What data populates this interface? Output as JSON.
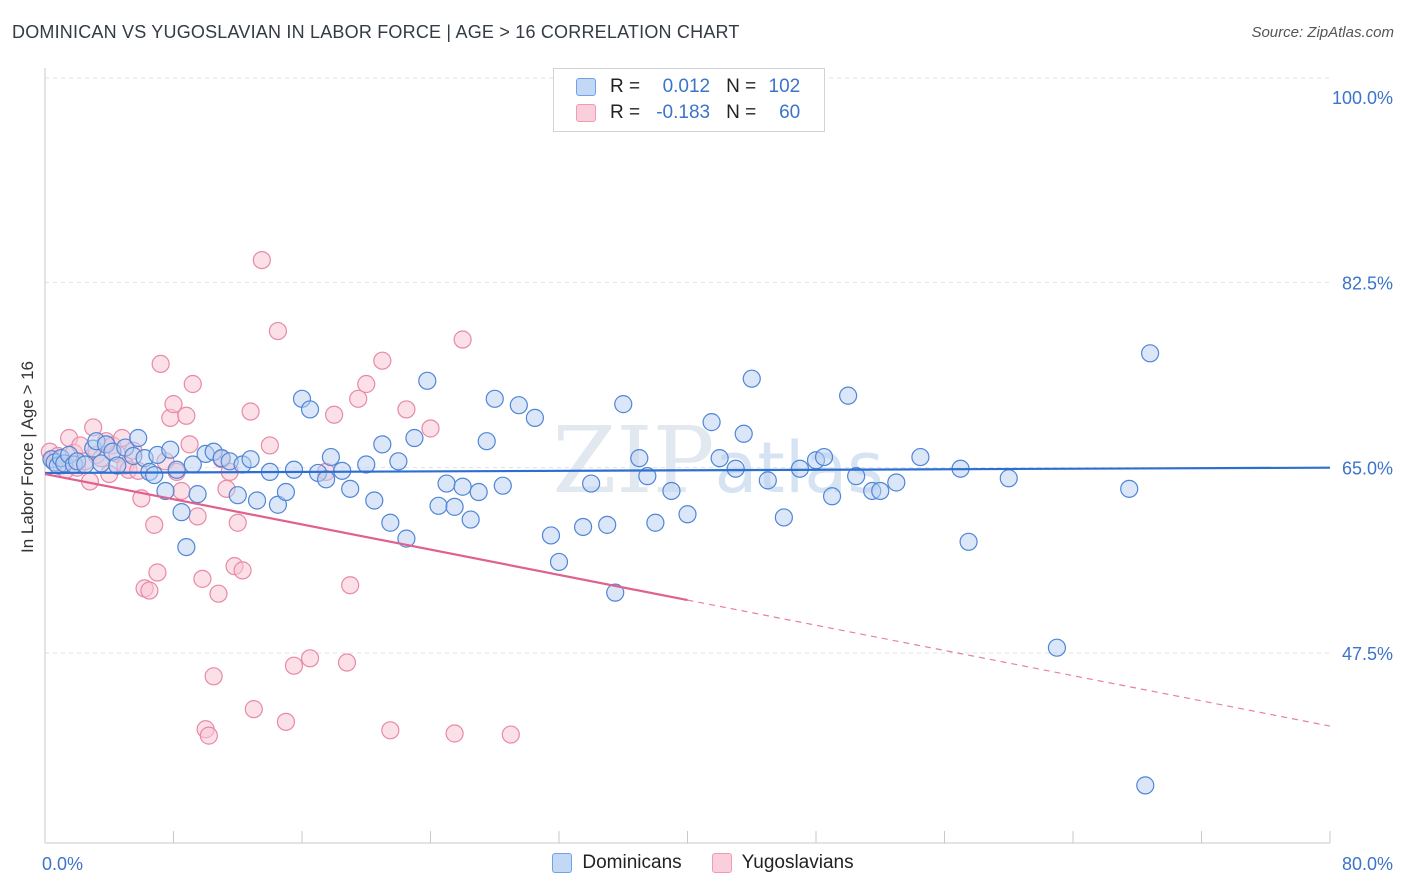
{
  "title": "DOMINICAN VS YUGOSLAVIAN IN LABOR FORCE | AGE > 16 CORRELATION CHART",
  "source": "Source: ZipAtlas.com",
  "watermark": "ZIPatlas",
  "legend": {
    "rows": [
      {
        "r_label": "R =",
        "r_value": "0.012",
        "n_label": "N =",
        "n_value": "102",
        "color": "#6fa3e8"
      },
      {
        "r_label": "R =",
        "r_value": "-0.183",
        "n_label": "N =",
        "n_value": "60",
        "color": "#f09ab5"
      }
    ]
  },
  "colors": {
    "blue_fill": "#b8d0f2",
    "blue_stroke": "#4f86d6",
    "blue_line": "#2d6fd0",
    "pink_fill": "#f8c6d5",
    "pink_stroke": "#e889a7",
    "pink_line": "#e0608e",
    "tick_label": "#3b74c9",
    "grid": "#dde1e6"
  },
  "chart_data": {
    "type": "scatter",
    "ylabel": "In Labor Force | Age > 16",
    "xlim": [
      0,
      80
    ],
    "ylim": [
      34,
      101
    ],
    "x_tick_labels": [
      {
        "value": 0,
        "label": "0.0%"
      },
      {
        "value": 80,
        "label": "80.0%"
      }
    ],
    "y_tick_labels": [
      {
        "value": 100,
        "label": "100.0%"
      },
      {
        "value": 82.5,
        "label": "82.5%"
      },
      {
        "value": 65,
        "label": "65.0%"
      },
      {
        "value": 47.5,
        "label": "47.5%"
      }
    ],
    "grid_y": [
      100,
      82.5,
      65,
      47.5
    ],
    "series": [
      {
        "name": "Dominicans",
        "trend": {
          "x0": 0,
          "y0": 64.5,
          "x1": 80,
          "y1": 65.0,
          "dashed_from": null
        },
        "points": [
          [
            0.4,
            65.8
          ],
          [
            0.6,
            65.5
          ],
          [
            0.8,
            65.2
          ],
          [
            1.0,
            65.9
          ],
          [
            1.2,
            65.4
          ],
          [
            1.5,
            66.2
          ],
          [
            1.8,
            65.3
          ],
          [
            2.0,
            65.6
          ],
          [
            2.5,
            65.3
          ],
          [
            3.0,
            66.8
          ],
          [
            3.2,
            67.5
          ],
          [
            3.5,
            65.4
          ],
          [
            3.8,
            67.2
          ],
          [
            4.2,
            66.5
          ],
          [
            4.5,
            65.2
          ],
          [
            5.0,
            66.9
          ],
          [
            5.5,
            66.1
          ],
          [
            5.8,
            67.8
          ],
          [
            6.2,
            65.9
          ],
          [
            6.5,
            64.6
          ],
          [
            6.8,
            64.3
          ],
          [
            7.0,
            66.2
          ],
          [
            7.5,
            62.8
          ],
          [
            7.8,
            66.7
          ],
          [
            8.2,
            64.8
          ],
          [
            8.5,
            60.8
          ],
          [
            8.8,
            57.5
          ],
          [
            9.2,
            65.3
          ],
          [
            9.5,
            62.5
          ],
          [
            10.0,
            66.3
          ],
          [
            10.5,
            66.5
          ],
          [
            11.0,
            65.9
          ],
          [
            11.5,
            65.6
          ],
          [
            12.0,
            62.4
          ],
          [
            12.3,
            65.3
          ],
          [
            12.8,
            65.8
          ],
          [
            13.2,
            61.9
          ],
          [
            14.0,
            64.6
          ],
          [
            14.5,
            61.5
          ],
          [
            15.0,
            62.7
          ],
          [
            15.5,
            64.8
          ],
          [
            16.0,
            71.5
          ],
          [
            16.5,
            70.5
          ],
          [
            17.0,
            64.5
          ],
          [
            17.5,
            63.9
          ],
          [
            17.8,
            66.0
          ],
          [
            18.5,
            64.7
          ],
          [
            19.0,
            63.0
          ],
          [
            20.0,
            65.3
          ],
          [
            20.5,
            61.9
          ],
          [
            21.0,
            67.2
          ],
          [
            21.5,
            59.8
          ],
          [
            22.0,
            65.6
          ],
          [
            22.5,
            58.3
          ],
          [
            23.0,
            67.8
          ],
          [
            23.8,
            73.2
          ],
          [
            24.5,
            61.4
          ],
          [
            25.0,
            63.5
          ],
          [
            25.5,
            61.3
          ],
          [
            26.0,
            63.2
          ],
          [
            26.5,
            60.1
          ],
          [
            27.0,
            62.7
          ],
          [
            27.5,
            67.5
          ],
          [
            28.0,
            71.5
          ],
          [
            28.5,
            63.3
          ],
          [
            29.5,
            70.9
          ],
          [
            30.5,
            69.7
          ],
          [
            31.5,
            58.6
          ],
          [
            32.0,
            56.1
          ],
          [
            33.5,
            59.4
          ],
          [
            34.0,
            63.5
          ],
          [
            35.0,
            59.6
          ],
          [
            35.5,
            53.2
          ],
          [
            36.0,
            71.0
          ],
          [
            37.0,
            65.9
          ],
          [
            37.5,
            64.2
          ],
          [
            38.0,
            59.8
          ],
          [
            39.0,
            62.8
          ],
          [
            40.0,
            60.6
          ],
          [
            41.5,
            69.3
          ],
          [
            42.0,
            65.9
          ],
          [
            43.0,
            64.9
          ],
          [
            43.5,
            68.2
          ],
          [
            44.0,
            73.4
          ],
          [
            45.0,
            63.8
          ],
          [
            46.0,
            60.3
          ],
          [
            47.0,
            64.9
          ],
          [
            48.0,
            65.7
          ],
          [
            48.5,
            66.0
          ],
          [
            49.0,
            62.3
          ],
          [
            50.0,
            71.8
          ],
          [
            50.5,
            64.2
          ],
          [
            51.5,
            62.8
          ],
          [
            52.0,
            62.8
          ],
          [
            53.0,
            63.6
          ],
          [
            54.5,
            66.0
          ],
          [
            57.0,
            64.9
          ],
          [
            57.5,
            58.0
          ],
          [
            60.0,
            64.0
          ],
          [
            63.0,
            48.0
          ],
          [
            67.5,
            63.0
          ],
          [
            68.5,
            35.0
          ],
          [
            68.8,
            75.8
          ]
        ]
      },
      {
        "name": "Yugoslavians",
        "trend": {
          "x0": 0,
          "y0": 64.4,
          "x1": 80,
          "y1": 40.6,
          "dashed_from": 40
        },
        "points": [
          [
            0.3,
            66.5
          ],
          [
            0.5,
            65.8
          ],
          [
            0.8,
            66.1
          ],
          [
            1.0,
            65.2
          ],
          [
            1.3,
            64.8
          ],
          [
            1.5,
            67.8
          ],
          [
            1.8,
            66.4
          ],
          [
            2.0,
            65.0
          ],
          [
            2.2,
            67.1
          ],
          [
            2.5,
            65.6
          ],
          [
            2.8,
            63.7
          ],
          [
            3.0,
            68.8
          ],
          [
            3.2,
            66.2
          ],
          [
            3.5,
            65.9
          ],
          [
            3.8,
            67.5
          ],
          [
            4.0,
            64.4
          ],
          [
            4.2,
            67.1
          ],
          [
            4.5,
            66.3
          ],
          [
            4.8,
            67.8
          ],
          [
            5.0,
            65.2
          ],
          [
            5.2,
            64.8
          ],
          [
            5.5,
            66.6
          ],
          [
            5.8,
            64.7
          ],
          [
            6.0,
            62.1
          ],
          [
            6.2,
            53.6
          ],
          [
            6.5,
            53.4
          ],
          [
            6.8,
            59.6
          ],
          [
            7.0,
            55.1
          ],
          [
            7.2,
            74.8
          ],
          [
            7.5,
            65.6
          ],
          [
            7.8,
            69.7
          ],
          [
            8.0,
            71.0
          ],
          [
            8.2,
            64.6
          ],
          [
            8.5,
            62.8
          ],
          [
            8.8,
            69.9
          ],
          [
            9.0,
            67.2
          ],
          [
            9.2,
            72.9
          ],
          [
            9.5,
            60.4
          ],
          [
            9.8,
            54.5
          ],
          [
            10.0,
            40.3
          ],
          [
            10.2,
            39.7
          ],
          [
            10.5,
            45.3
          ],
          [
            10.8,
            53.1
          ],
          [
            11.0,
            65.8
          ],
          [
            11.3,
            63.0
          ],
          [
            11.5,
            64.6
          ],
          [
            11.8,
            55.7
          ],
          [
            12.0,
            59.8
          ],
          [
            12.3,
            55.3
          ],
          [
            12.8,
            70.3
          ],
          [
            13.0,
            42.2
          ],
          [
            13.5,
            84.6
          ],
          [
            14.0,
            67.1
          ],
          [
            14.5,
            77.9
          ],
          [
            15.0,
            41.0
          ],
          [
            15.5,
            46.3
          ],
          [
            16.5,
            47.0
          ],
          [
            17.5,
            64.6
          ],
          [
            18.0,
            70.0
          ],
          [
            18.8,
            46.6
          ],
          [
            19.0,
            53.9
          ],
          [
            19.5,
            71.5
          ],
          [
            20.0,
            72.9
          ],
          [
            21.0,
            75.1
          ],
          [
            21.5,
            40.2
          ],
          [
            22.5,
            70.5
          ],
          [
            24.0,
            68.7
          ],
          [
            25.5,
            39.9
          ],
          [
            26.0,
            77.1
          ],
          [
            29.0,
            39.8
          ]
        ]
      }
    ]
  }
}
